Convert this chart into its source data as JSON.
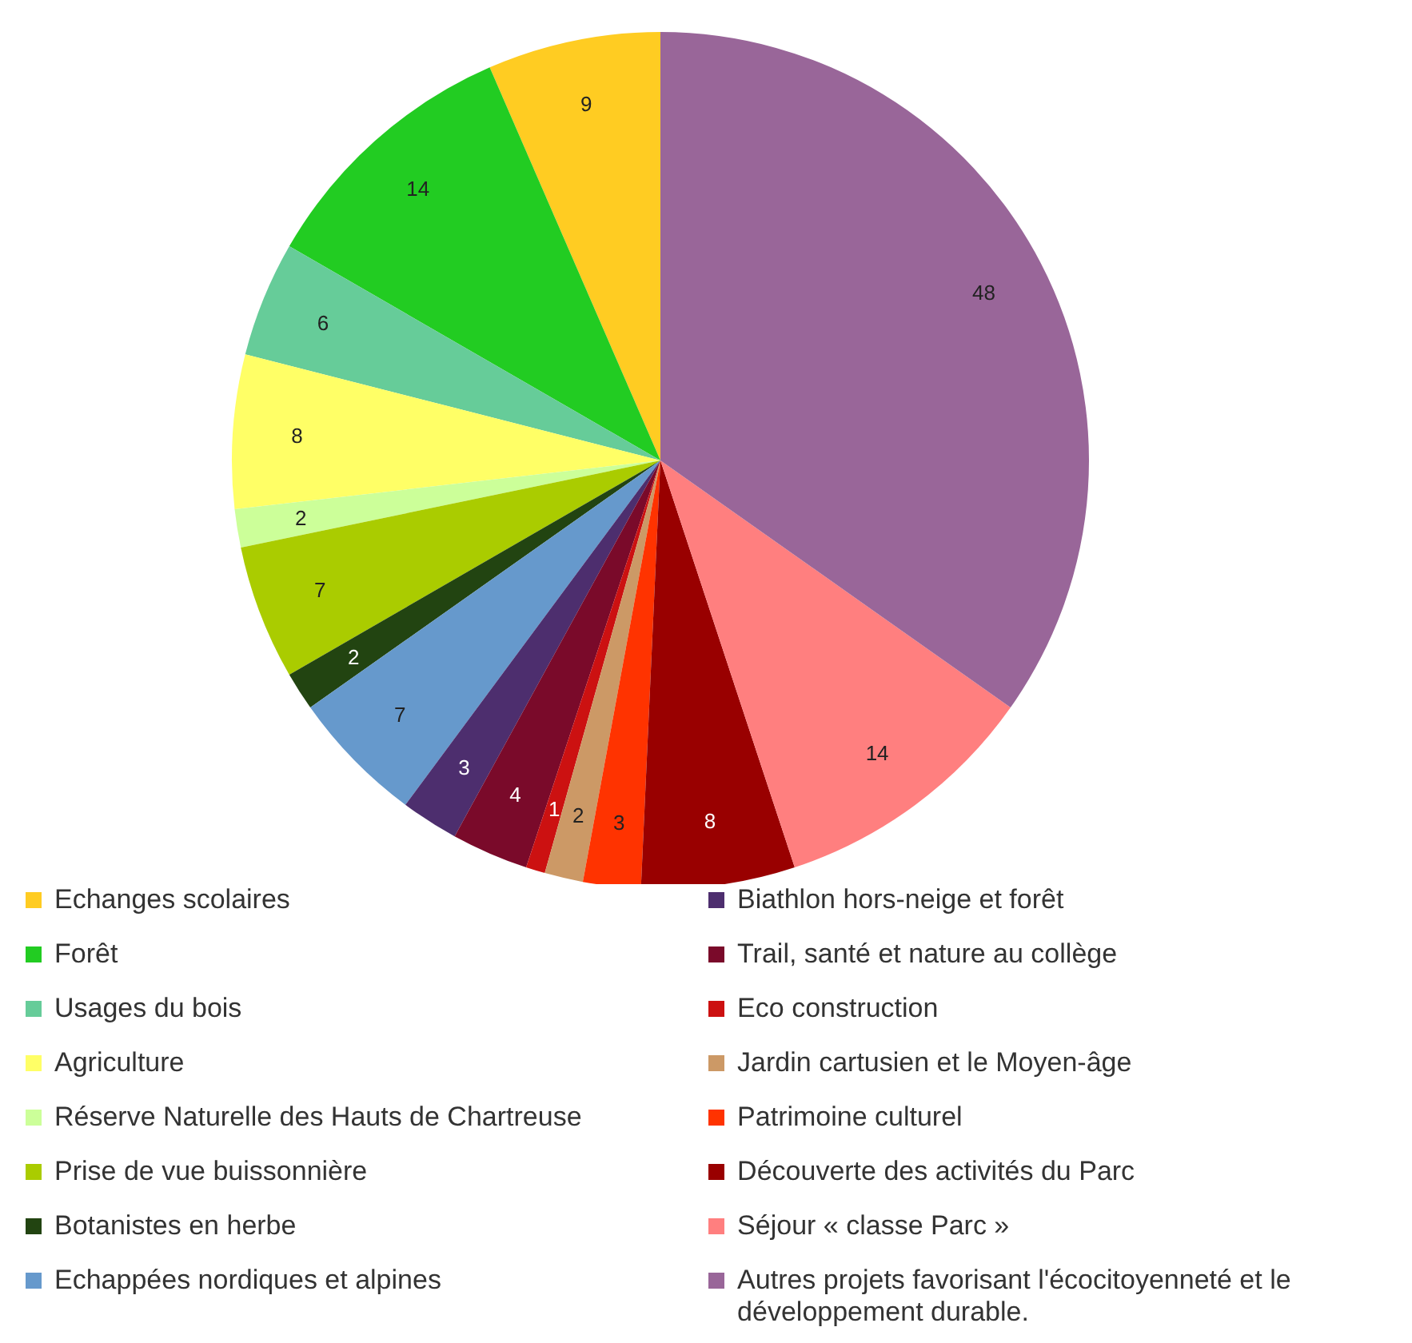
{
  "chart_data": {
    "type": "pie",
    "categories": [
      "Echanges scolaires",
      "Forêt",
      "Usages du bois",
      "Agriculture",
      "Réserve Naturelle des Hauts de Chartreuse",
      "Prise de vue buissonnière",
      "Botanistes en herbe",
      "Echappées nordiques et alpines",
      "Biathlon hors-neige et forêt",
      "Trail, santé et nature au collège",
      "Eco construction",
      "Jardin cartusien et le Moyen-âge",
      "Patrimoine culturel",
      "Découverte des activités du Parc",
      "Séjour « classe Parc »",
      "Autres projets favorisant l'écocitoyenneté et le développement durable."
    ],
    "values": [
      9,
      14,
      6,
      8,
      2,
      7,
      2,
      7,
      3,
      4,
      1,
      2,
      3,
      8,
      14,
      48
    ],
    "colors": [
      "#ffcc22",
      "#22cc22",
      "#66cc99",
      "#ffff66",
      "#ccff99",
      "#aacc00",
      "#224411",
      "#6699cc",
      "#4d2e6e",
      "#7a0a2a",
      "#cc1111",
      "#cc9966",
      "#ff3300",
      "#990000",
      "#ff7f7f",
      "#996699"
    ],
    "data_labels": true,
    "legend": "bottom"
  }
}
